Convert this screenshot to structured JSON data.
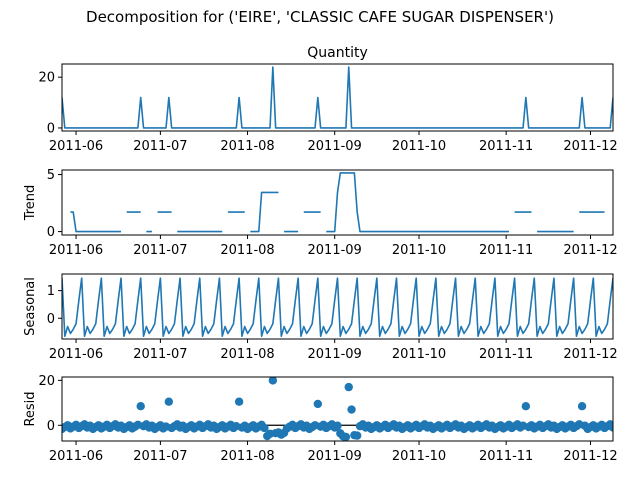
{
  "chart_data": {
    "type": "line",
    "suptitle": "Decomposition for ('EIRE', 'CLASSIC CAFE SUGAR DISPENSER')",
    "colors": {
      "series": "#1f77b4",
      "axis": "#000000",
      "background": "#ffffff"
    },
    "x_range": [
      "2011-05-27",
      "2011-12-09"
    ],
    "x_tick_labels": [
      "2011-06",
      "2011-07",
      "2011-08",
      "2011-09",
      "2011-10",
      "2011-11",
      "2011-12"
    ],
    "x_tick_dates": [
      "2011-06-01",
      "2011-07-01",
      "2011-08-01",
      "2011-09-01",
      "2011-10-01",
      "2011-11-01",
      "2011-12-01"
    ],
    "panels": [
      {
        "id": "observed",
        "type": "line",
        "title": "Quantity",
        "ylabel": "",
        "ylim": [
          -1.2,
          25.2
        ],
        "yticks": [
          0,
          20
        ],
        "spikes": [
          {
            "date": "2011-05-27",
            "value": 12
          },
          {
            "date": "2011-06-24",
            "value": 12
          },
          {
            "date": "2011-07-04",
            "value": 12
          },
          {
            "date": "2011-07-29",
            "value": 12
          },
          {
            "date": "2011-08-10",
            "value": 24
          },
          {
            "date": "2011-08-26",
            "value": 12
          },
          {
            "date": "2011-09-06",
            "value": 24
          },
          {
            "date": "2011-11-08",
            "value": 12
          },
          {
            "date": "2011-11-28",
            "value": 12
          },
          {
            "date": "2011-12-09",
            "value": 12
          }
        ]
      },
      {
        "id": "trend",
        "type": "line",
        "title": "",
        "ylabel": "Trend",
        "ylim": [
          -0.3,
          5.4
        ],
        "yticks": [
          0,
          5
        ],
        "segments": [
          {
            "start": "2011-05-30",
            "end": "2011-05-31",
            "value": 1.71
          },
          {
            "start": "2011-06-01",
            "end": "2011-06-17",
            "value": 0
          },
          {
            "start": "2011-06-19",
            "end": "2011-06-24",
            "value": 1.71
          },
          {
            "start": "2011-06-26",
            "end": "2011-06-28",
            "value": 0
          },
          {
            "start": "2011-06-30",
            "end": "2011-07-05",
            "value": 1.71
          },
          {
            "start": "2011-07-07",
            "end": "2011-07-23",
            "value": 0
          },
          {
            "start": "2011-07-25",
            "end": "2011-07-31",
            "value": 1.71
          },
          {
            "start": "2011-08-02",
            "end": "2011-08-05",
            "value": 0
          },
          {
            "start": "2011-08-06",
            "end": "2011-08-12",
            "value": 3.43
          },
          {
            "start": "2011-08-14",
            "end": "2011-08-19",
            "value": 0
          },
          {
            "start": "2011-08-21",
            "end": "2011-08-27",
            "value": 1.71
          },
          {
            "start": "2011-08-29",
            "end": "2011-09-01",
            "value": 0
          },
          {
            "start": "2011-09-02",
            "end": "2011-09-02",
            "value": 3.43
          },
          {
            "start": "2011-09-03",
            "end": "2011-09-08",
            "value": 5.14
          },
          {
            "start": "2011-09-09",
            "end": "2011-09-09",
            "value": 1.71
          },
          {
            "start": "2011-09-10",
            "end": "2011-11-02",
            "value": 0
          },
          {
            "start": "2011-11-04",
            "end": "2011-11-10",
            "value": 1.71
          },
          {
            "start": "2011-11-12",
            "end": "2011-11-25",
            "value": 0
          },
          {
            "start": "2011-11-27",
            "end": "2011-12-06",
            "value": 1.71
          }
        ]
      },
      {
        "id": "seasonal",
        "type": "line",
        "title": "",
        "ylabel": "Seasonal",
        "ylim": [
          -0.75,
          1.6
        ],
        "yticks": [
          0,
          1
        ],
        "period_days": 7,
        "weekly_pattern": [
          1.45,
          -0.65,
          -0.3,
          -0.55,
          -0.4,
          -0.2,
          0.65
        ],
        "pattern_start": "2011-05-27",
        "end_value": 1.45
      },
      {
        "id": "resid",
        "type": "scatter",
        "title": "",
        "ylabel": "Resid",
        "ylim": [
          -7,
          21.5
        ],
        "yticks": [
          0,
          20
        ],
        "zero_line": true,
        "outliers": [
          {
            "date": "2011-06-24",
            "value": 8.5
          },
          {
            "date": "2011-07-04",
            "value": 10.5
          },
          {
            "date": "2011-07-29",
            "value": 10.5
          },
          {
            "date": "2011-08-10",
            "value": 20
          },
          {
            "date": "2011-08-26",
            "value": 9.5
          },
          {
            "date": "2011-09-06",
            "value": 17
          },
          {
            "date": "2011-09-07",
            "value": 7
          },
          {
            "date": "2011-11-08",
            "value": 8.5
          },
          {
            "date": "2011-11-28",
            "value": 8.5
          }
        ],
        "low_points": [
          {
            "date": "2011-08-08",
            "value": -4.8
          },
          {
            "date": "2011-08-09",
            "value": -3.8
          },
          {
            "date": "2011-08-11",
            "value": -3.5
          },
          {
            "date": "2011-08-12",
            "value": -3.2
          },
          {
            "date": "2011-08-13",
            "value": -4.2
          },
          {
            "date": "2011-08-14",
            "value": -3.4
          },
          {
            "date": "2011-09-03",
            "value": -3.6
          },
          {
            "date": "2011-09-04",
            "value": -4.9
          },
          {
            "date": "2011-09-05",
            "value": -5.2
          },
          {
            "date": "2011-09-08",
            "value": -4.4
          },
          {
            "date": "2011-09-09",
            "value": -4.6
          }
        ]
      }
    ]
  }
}
